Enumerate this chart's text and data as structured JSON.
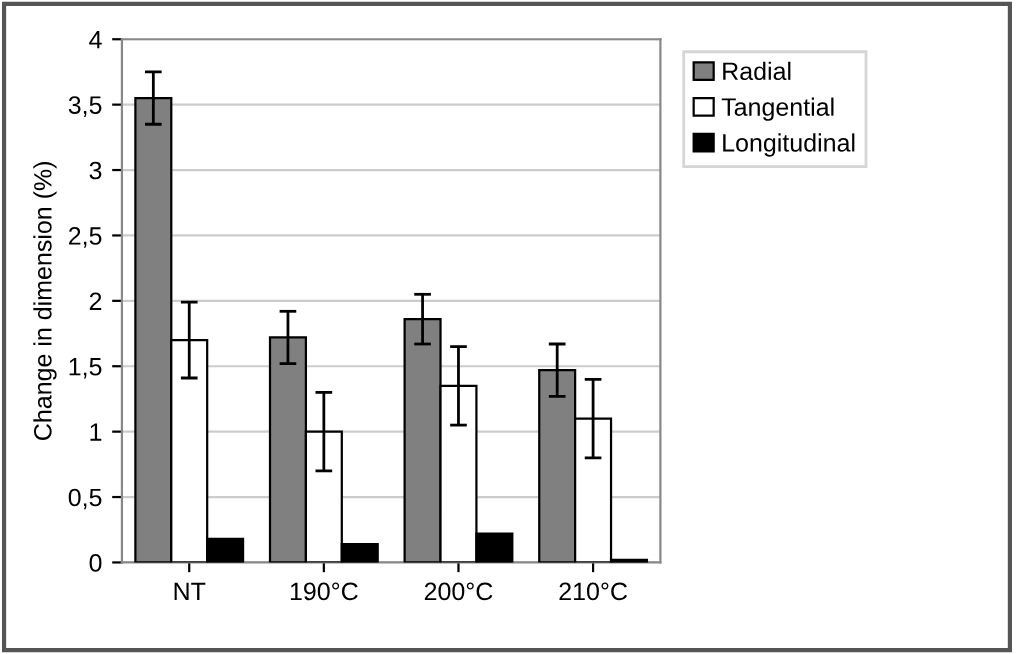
{
  "chart_data": {
    "type": "bar",
    "ylabel": "Change in dimension (%)",
    "categories": [
      "NT",
      "190°C",
      "200°C",
      "210°C"
    ],
    "series": [
      {
        "name": "Radial",
        "color": "#808080",
        "values": [
          3.55,
          1.72,
          1.86,
          1.47
        ],
        "errors": [
          0.2,
          0.2,
          0.19,
          0.2
        ]
      },
      {
        "name": "Tangential",
        "color": "#ffffff",
        "values": [
          1.7,
          1.0,
          1.35,
          1.1
        ],
        "errors": [
          0.29,
          0.3,
          0.3,
          0.3
        ]
      },
      {
        "name": "Longitudinal",
        "color": "#000000",
        "values": [
          0.18,
          0.14,
          0.22,
          0.02
        ]
      }
    ],
    "ylim": [
      0,
      4
    ],
    "yticks": [
      0,
      {
        "value": 0.5,
        "label": "0,5"
      },
      1,
      {
        "value": 1.5,
        "label": "1,5"
      },
      2,
      {
        "value": 2.5,
        "label": "2,5"
      },
      3,
      {
        "value": 3.5,
        "label": "3,5"
      },
      4
    ],
    "grid": "y",
    "legend": "top right"
  }
}
